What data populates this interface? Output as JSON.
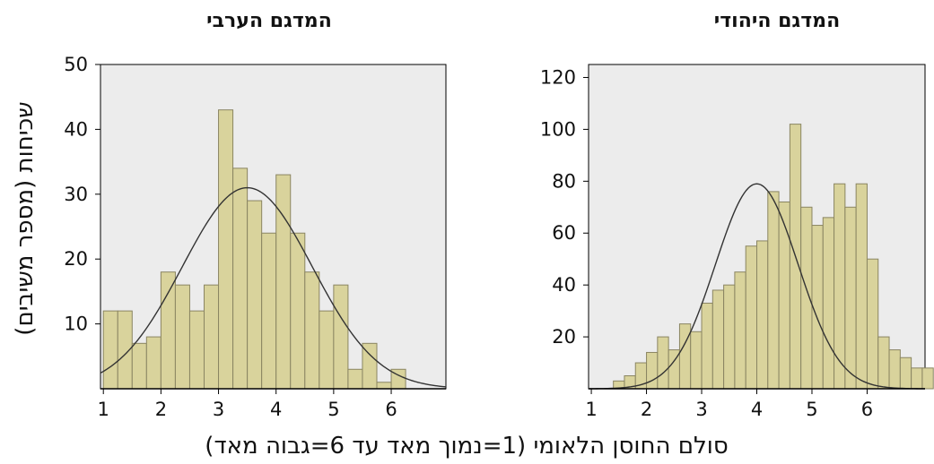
{
  "figure": {
    "ylabel": "שכיחות (מספר משיבים)",
    "xlabel": "סולם החוסן הלאומי (1=נמוך מאד עד 6=גבוה מאד)"
  },
  "colors": {
    "bar_fill": "#d9d39c",
    "bar_stroke": "#8a8562",
    "plot_bg": "#ececec",
    "curve": "#333333"
  },
  "chart_data": [
    {
      "type": "bar",
      "title": "המדגם הערבי",
      "xlim": [
        0.95,
        6.95
      ],
      "ylim": [
        0,
        50
      ],
      "xticks": [
        1,
        2,
        3,
        4,
        5,
        6
      ],
      "yticks": [
        10,
        20,
        30,
        40,
        50
      ],
      "bin_width": 0.25,
      "bin_start": 1.0,
      "values": [
        12,
        12,
        7,
        8,
        18,
        16,
        12,
        16,
        43,
        34,
        29,
        24,
        33,
        24,
        18,
        12,
        16,
        3,
        7,
        1,
        3
      ],
      "normal_curve": {
        "mean": 3.5,
        "sd": 1.13,
        "peak": 31
      }
    },
    {
      "type": "bar",
      "title": "המדגם היהודי",
      "xlim": [
        0.95,
        7.05
      ],
      "ylim": [
        0,
        125
      ],
      "xticks": [
        1,
        2,
        3,
        4,
        5,
        6
      ],
      "yticks": [
        20,
        40,
        60,
        80,
        100,
        120
      ],
      "bin_width": 0.2,
      "bin_start": 1.4,
      "values": [
        3,
        5,
        10,
        14,
        20,
        15,
        25,
        22,
        33,
        38,
        40,
        45,
        55,
        57,
        76,
        72,
        102,
        70,
        63,
        66,
        79,
        70,
        79,
        50,
        20,
        15,
        12,
        8,
        8
      ],
      "normal_curve": {
        "mean": 4.0,
        "sd": 0.75,
        "peak": 79
      }
    }
  ]
}
